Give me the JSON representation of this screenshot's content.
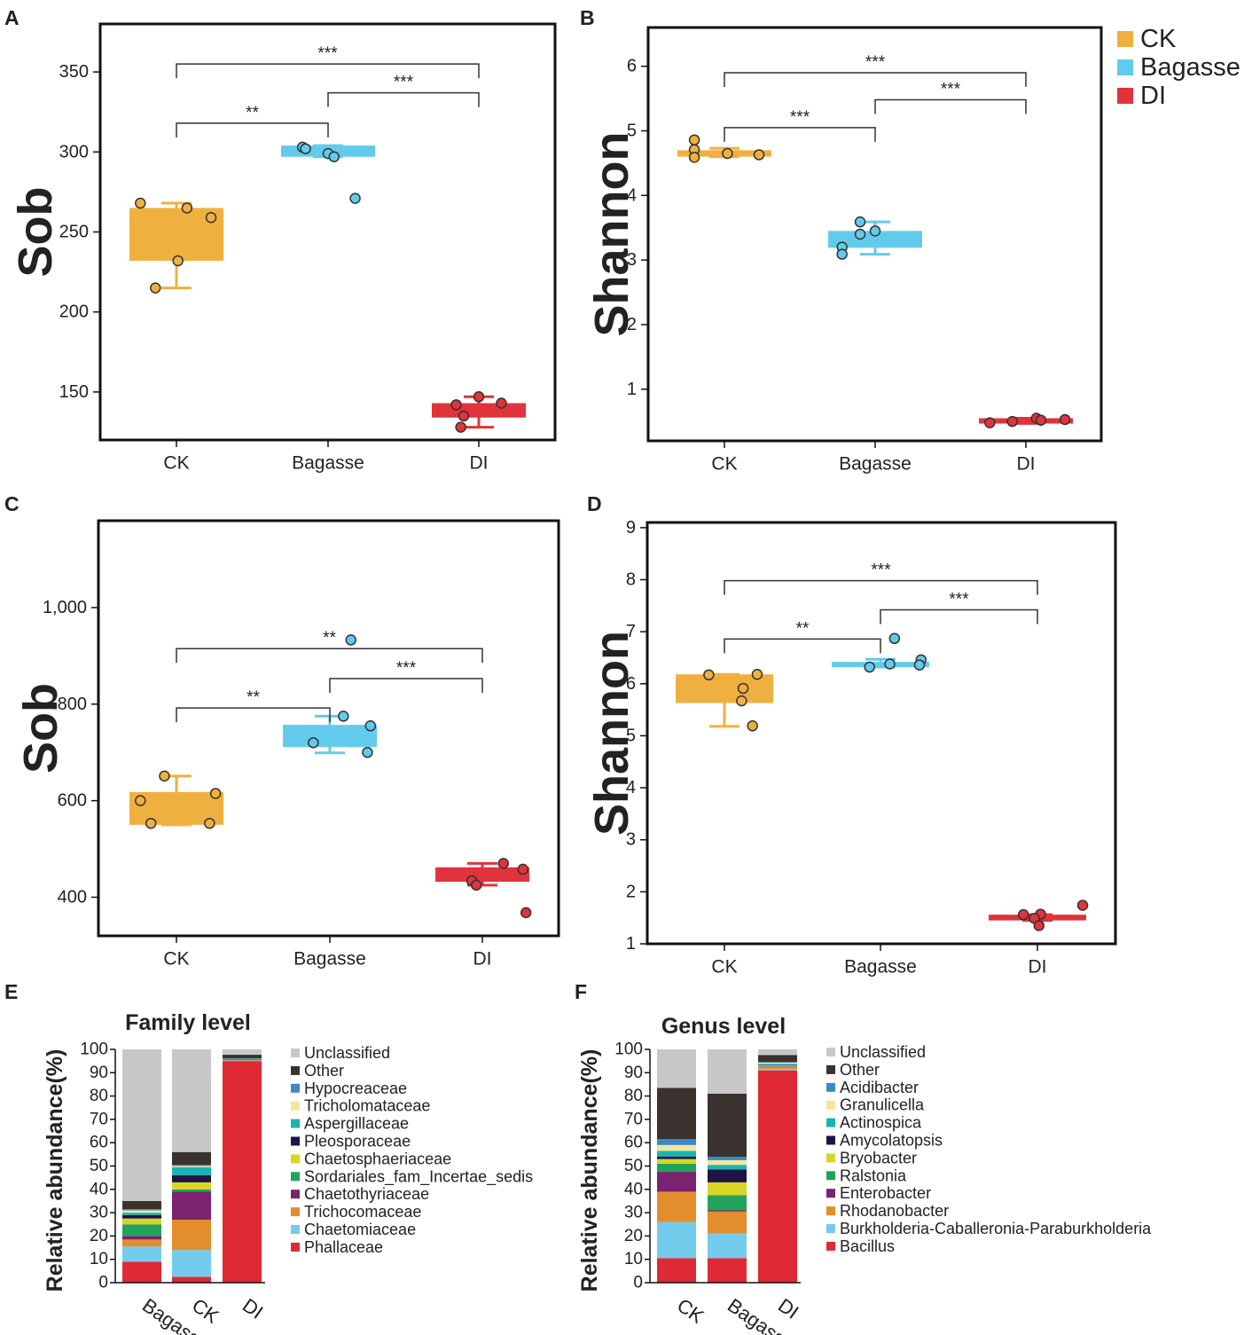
{
  "colors": {
    "CK": "#F0B040",
    "Bagasse": "#62CBEC",
    "DI": "#E0333C"
  },
  "legend": [
    "CK",
    "Bagasse",
    "DI"
  ],
  "chart_data": [
    {
      "panel": "A",
      "type": "box",
      "ylabel": "Sob",
      "ylim": [
        120,
        380
      ],
      "yticks": [
        150,
        200,
        250,
        300,
        350
      ],
      "ytick_labels": [
        "150",
        "200",
        "250",
        "300",
        "350"
      ],
      "categories": [
        "CK",
        "Bagasse",
        "DI"
      ],
      "groups": [
        {
          "name": "CK",
          "whisker_low": 215,
          "q1": 232,
          "q3": 265,
          "whisker_high": 268,
          "points": [
            {
              "jitter": -0.24,
              "value": 268
            },
            {
              "jitter": 0.07,
              "value": 265
            },
            {
              "jitter": 0.23,
              "value": 259
            },
            {
              "jitter": 0.01,
              "value": 232
            },
            {
              "jitter": -0.14,
              "value": 215
            }
          ]
        },
        {
          "name": "Bagasse",
          "whisker_low": 297,
          "q1": 297,
          "q3": 304,
          "whisker_high": 304,
          "points": [
            {
              "jitter": -0.17,
              "value": 303
            },
            {
              "jitter": -0.15,
              "value": 302
            },
            {
              "jitter": 0.0,
              "value": 299
            },
            {
              "jitter": 0.04,
              "value": 297
            },
            {
              "jitter": 0.18,
              "value": 271
            }
          ]
        },
        {
          "name": "DI",
          "whisker_low": 128,
          "q1": 134,
          "q3": 143,
          "whisker_high": 147,
          "points": [
            {
              "jitter": 0.0,
              "value": 147
            },
            {
              "jitter": -0.15,
              "value": 142
            },
            {
              "jitter": 0.15,
              "value": 143
            },
            {
              "jitter": -0.1,
              "value": 135
            },
            {
              "jitter": -0.12,
              "value": 128
            }
          ]
        }
      ],
      "significance": [
        {
          "from": "CK",
          "to": "DI",
          "label": "***",
          "y": 355
        },
        {
          "from": "Bagasse",
          "to": "DI",
          "label": "***",
          "y": 337
        },
        {
          "from": "CK",
          "to": "Bagasse",
          "label": "**",
          "y": 318
        }
      ]
    },
    {
      "panel": "B",
      "type": "box",
      "ylabel": "Shannon",
      "ylim": [
        0.2,
        6.6
      ],
      "yticks": [
        1,
        2,
        3,
        4,
        5,
        6
      ],
      "ytick_labels": [
        "1",
        "2",
        "3",
        "4",
        "5",
        "6"
      ],
      "categories": [
        "CK",
        "Bagasse",
        "DI"
      ],
      "groups": [
        {
          "name": "CK",
          "whisker_low": 4.6,
          "q1": 4.6,
          "q3": 4.7,
          "whisker_high": 4.73,
          "points": [
            {
              "jitter": -0.2,
              "value": 4.86
            },
            {
              "jitter": -0.2,
              "value": 4.71
            },
            {
              "jitter": -0.2,
              "value": 4.59
            },
            {
              "jitter": 0.02,
              "value": 4.65
            },
            {
              "jitter": 0.23,
              "value": 4.63
            }
          ]
        },
        {
          "name": "Bagasse",
          "whisker_low": 3.09,
          "q1": 3.19,
          "q3": 3.45,
          "whisker_high": 3.59,
          "points": [
            {
              "jitter": -0.1,
              "value": 3.59
            },
            {
              "jitter": -0.1,
              "value": 3.4
            },
            {
              "jitter": -0.22,
              "value": 3.2
            },
            {
              "jitter": -0.22,
              "value": 3.09
            },
            {
              "jitter": 0.0,
              "value": 3.45
            }
          ]
        },
        {
          "name": "DI",
          "whisker_low": 0.47,
          "q1": 0.47,
          "q3": 0.55,
          "whisker_high": 0.55,
          "points": [
            {
              "jitter": -0.24,
              "value": 0.48
            },
            {
              "jitter": -0.09,
              "value": 0.5
            },
            {
              "jitter": 0.07,
              "value": 0.55
            },
            {
              "jitter": 0.1,
              "value": 0.52
            },
            {
              "jitter": 0.26,
              "value": 0.53
            }
          ]
        }
      ],
      "significance": [
        {
          "from": "CK",
          "to": "DI",
          "label": "***",
          "y": 5.9
        },
        {
          "from": "Bagasse",
          "to": "DI",
          "label": "***",
          "y": 5.48
        },
        {
          "from": "CK",
          "to": "Bagasse",
          "label": "***",
          "y": 5.05
        }
      ]
    },
    {
      "panel": "C",
      "type": "box",
      "ylabel": "Sob",
      "ylim": [
        320,
        1180
      ],
      "yticks": [
        400,
        600,
        800,
        1000
      ],
      "ytick_labels": [
        "400",
        "600",
        "800",
        "1,000"
      ],
      "categories": [
        "CK",
        "Bagasse",
        "DI"
      ],
      "groups": [
        {
          "name": "CK",
          "whisker_low": 550,
          "q1": 550,
          "q3": 618,
          "whisker_high": 651,
          "points": [
            {
              "jitter": -0.08,
              "value": 651
            },
            {
              "jitter": 0.26,
              "value": 615
            },
            {
              "jitter": -0.24,
              "value": 600
            },
            {
              "jitter": -0.17,
              "value": 553
            },
            {
              "jitter": 0.22,
              "value": 553
            }
          ]
        },
        {
          "name": "Bagasse",
          "whisker_low": 699,
          "q1": 711,
          "q3": 757,
          "whisker_high": 775,
          "points": [
            {
              "jitter": -0.11,
              "value": 720
            },
            {
              "jitter": 0.09,
              "value": 775
            },
            {
              "jitter": 0.27,
              "value": 755
            },
            {
              "jitter": 0.25,
              "value": 700
            },
            {
              "jitter": 0.14,
              "value": 933
            }
          ]
        },
        {
          "name": "DI",
          "whisker_low": 425,
          "q1": 432,
          "q3": 462,
          "whisker_high": 470,
          "points": [
            {
              "jitter": 0.14,
              "value": 470
            },
            {
              "jitter": 0.27,
              "value": 458
            },
            {
              "jitter": -0.07,
              "value": 434
            },
            {
              "jitter": -0.04,
              "value": 425
            },
            {
              "jitter": 0.29,
              "value": 368
            }
          ]
        }
      ],
      "significance": [
        {
          "from": "CK",
          "to": "DI",
          "label": "**",
          "y": 915
        },
        {
          "from": "Bagasse",
          "to": "DI",
          "label": "***",
          "y": 853
        },
        {
          "from": "CK",
          "to": "Bagasse",
          "label": "**",
          "y": 792
        }
      ]
    },
    {
      "panel": "D",
      "type": "box",
      "ylabel": "Shannon",
      "ylim": [
        1.0,
        9.1
      ],
      "yticks": [
        1,
        2,
        3,
        4,
        5,
        6,
        7,
        8,
        9
      ],
      "ytick_labels": [
        "1",
        "2",
        "3",
        "4",
        "5",
        "6",
        "7",
        "8",
        "9"
      ],
      "categories": [
        "CK",
        "Bagasse",
        "DI"
      ],
      "groups": [
        {
          "name": "CK",
          "whisker_low": 5.18,
          "q1": 5.63,
          "q3": 6.18,
          "whisker_high": 6.18,
          "points": [
            {
              "jitter": -0.1,
              "value": 6.17
            },
            {
              "jitter": 0.21,
              "value": 6.18
            },
            {
              "jitter": 0.12,
              "value": 5.91
            },
            {
              "jitter": 0.11,
              "value": 5.67
            },
            {
              "jitter": 0.18,
              "value": 5.19
            }
          ]
        },
        {
          "name": "Bagasse",
          "whisker_low": 6.32,
          "q1": 6.32,
          "q3": 6.42,
          "whisker_high": 6.47,
          "points": [
            {
              "jitter": 0.09,
              "value": 6.87
            },
            {
              "jitter": 0.26,
              "value": 6.46
            },
            {
              "jitter": 0.25,
              "value": 6.36
            },
            {
              "jitter": -0.07,
              "value": 6.32
            },
            {
              "jitter": 0.06,
              "value": 6.38
            }
          ]
        },
        {
          "name": "DI",
          "whisker_low": 1.45,
          "q1": 1.45,
          "q3": 1.56,
          "whisker_high": 1.56,
          "points": [
            {
              "jitter": 0.29,
              "value": 1.74
            },
            {
              "jitter": -0.09,
              "value": 1.56
            },
            {
              "jitter": 0.02,
              "value": 1.57
            },
            {
              "jitter": -0.02,
              "value": 1.49
            },
            {
              "jitter": 0.01,
              "value": 1.35
            }
          ]
        }
      ],
      "significance": [
        {
          "from": "CK",
          "to": "DI",
          "label": "***",
          "y": 7.98
        },
        {
          "from": "Bagasse",
          "to": "DI",
          "label": "***",
          "y": 7.42
        },
        {
          "from": "CK",
          "to": "Bagasse",
          "label": "**",
          "y": 6.86
        }
      ]
    },
    {
      "panel": "E",
      "type": "stacked-bar",
      "title": "Family level",
      "ylabel": "Relative abundance(%)",
      "ylim": [
        0,
        100
      ],
      "yticks": [
        0,
        10,
        20,
        30,
        40,
        50,
        60,
        70,
        80,
        90,
        100
      ],
      "categories": [
        "Bagasse",
        "CK",
        "DI"
      ],
      "series": [
        {
          "name": "Phallaceae",
          "color": "#DF2935",
          "values": [
            9,
            2.5,
            95
          ]
        },
        {
          "name": "Chaetomiaceae",
          "color": "#73CCEB",
          "values": [
            6.5,
            11.5,
            0.2
          ]
        },
        {
          "name": "Trichocomaceae",
          "color": "#E38D2C",
          "values": [
            3,
            13,
            0.2
          ]
        },
        {
          "name": "Chaetothyriaceae",
          "color": "#7B236F",
          "values": [
            1.5,
            12,
            0.2
          ]
        },
        {
          "name": "Sordariales_fam_Incertae_sedis",
          "color": "#22A35C",
          "values": [
            5,
            1,
            0.1
          ]
        },
        {
          "name": "Chaetosphaeriaceae",
          "color": "#D9D524",
          "values": [
            2.5,
            3,
            0.1
          ]
        },
        {
          "name": "Pleosporaceae",
          "color": "#1E1446",
          "values": [
            1.5,
            3,
            0.1
          ]
        },
        {
          "name": "Aspergillaceae",
          "color": "#1BB4B0",
          "values": [
            1,
            3.5,
            0.1
          ]
        },
        {
          "name": "Tricholomataceae",
          "color": "#F0E79A",
          "values": [
            1,
            0.5,
            0.1
          ]
        },
        {
          "name": "Hypocreaceae",
          "color": "#3E88C8",
          "values": [
            0.5,
            0.5,
            0.1
          ]
        },
        {
          "name": "Other",
          "color": "#3A322E",
          "values": [
            3.5,
            5.5,
            1.5
          ]
        },
        {
          "name": "Unclassified",
          "color": "#C8C8C8",
          "values": [
            65,
            44,
            2.3
          ]
        }
      ]
    },
    {
      "panel": "F",
      "type": "stacked-bar",
      "title": "Genus level",
      "ylabel": "Relative abundance(%)",
      "ylim": [
        0,
        100
      ],
      "yticks": [
        0,
        10,
        20,
        30,
        40,
        50,
        60,
        70,
        80,
        90,
        100
      ],
      "categories": [
        "CK",
        "Bagasse",
        "DI"
      ],
      "series": [
        {
          "name": "Bacillus",
          "color": "#DF2935",
          "values": [
            10.5,
            10.5,
            91
          ]
        },
        {
          "name": "Burkholderia-Caballeronia-Paraburkholderia",
          "color": "#73CCEB",
          "values": [
            15.5,
            10.5,
            0.5
          ]
        },
        {
          "name": "Rhodanobacter",
          "color": "#E38D2C",
          "values": [
            13,
            9.5,
            1
          ]
        },
        {
          "name": "Enterobacter",
          "color": "#7B236F",
          "values": [
            8.5,
            0.5,
            0.2
          ]
        },
        {
          "name": "Ralstonia",
          "color": "#22A35C",
          "values": [
            3.5,
            6.5,
            0.2
          ]
        },
        {
          "name": "Bryobacter",
          "color": "#D9D524",
          "values": [
            2,
            5.5,
            0.2
          ]
        },
        {
          "name": "Amycolatopsis",
          "color": "#1E1446",
          "values": [
            1,
            5.5,
            0.2
          ]
        },
        {
          "name": "Actinospica",
          "color": "#1BB4B0",
          "values": [
            2.5,
            2,
            0.5
          ]
        },
        {
          "name": "Granulicella",
          "color": "#F0E79A",
          "values": [
            2.5,
            2,
            0.5
          ]
        },
        {
          "name": "Acidibacter",
          "color": "#3E88C8",
          "values": [
            2.5,
            1.5,
            0.3
          ]
        },
        {
          "name": "Other",
          "color": "#3A322E",
          "values": [
            22,
            27,
            3
          ]
        },
        {
          "name": "Unclassified",
          "color": "#C8C8C8",
          "values": [
            16.5,
            19,
            2.4
          ]
        }
      ]
    }
  ]
}
